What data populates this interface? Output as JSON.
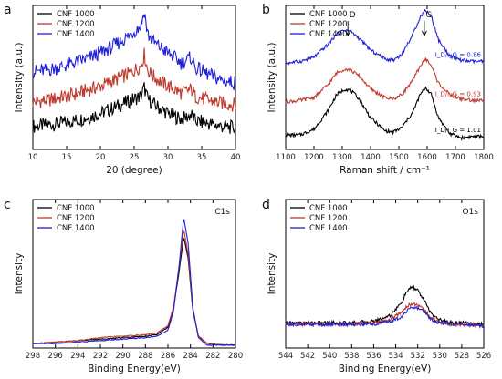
{
  "chart_data": [
    {
      "panel": "a",
      "type": "line",
      "xlabel": "2θ (degree)",
      "ylabel": "Intensity (a.u.)",
      "xlim": [
        10,
        40
      ],
      "xticks": [
        10,
        15,
        20,
        25,
        30,
        35,
        40
      ],
      "yticks": [],
      "legend_position": "top-left",
      "series": [
        {
          "name": "CNF 1000",
          "color": "#000000",
          "x": [
            10,
            12,
            14,
            16,
            18,
            20,
            22,
            24,
            25,
            26,
            26.5,
            27,
            28,
            30,
            32,
            33.5,
            34,
            36,
            38,
            40
          ],
          "y": [
            0.16,
            0.17,
            0.18,
            0.2,
            0.22,
            0.25,
            0.29,
            0.33,
            0.35,
            0.37,
            0.43,
            0.35,
            0.31,
            0.25,
            0.21,
            0.24,
            0.2,
            0.18,
            0.16,
            0.15
          ]
        },
        {
          "name": "CNF 1200",
          "color": "#c0392b",
          "x": [
            10,
            12,
            14,
            16,
            18,
            20,
            22,
            24,
            25,
            26,
            26.5,
            27,
            28,
            30,
            32,
            33.5,
            34,
            36,
            38,
            40
          ],
          "y": [
            0.33,
            0.34,
            0.36,
            0.38,
            0.41,
            0.44,
            0.48,
            0.52,
            0.55,
            0.58,
            0.66,
            0.55,
            0.5,
            0.44,
            0.39,
            0.42,
            0.37,
            0.34,
            0.32,
            0.31
          ]
        },
        {
          "name": "CNF 1400",
          "color": "#1f1fd6",
          "x": [
            10,
            12,
            14,
            16,
            18,
            20,
            22,
            24,
            25,
            26,
            26.5,
            27,
            28,
            30,
            32,
            33.5,
            34,
            36,
            38,
            40
          ],
          "y": [
            0.54,
            0.55,
            0.57,
            0.6,
            0.63,
            0.67,
            0.72,
            0.78,
            0.82,
            0.86,
            0.96,
            0.8,
            0.74,
            0.67,
            0.6,
            0.64,
            0.57,
            0.52,
            0.48,
            0.46
          ]
        }
      ]
    },
    {
      "panel": "b",
      "type": "line",
      "xlabel": "Raman shift / cm⁻¹",
      "ylabel": "Intensity (a.u.)",
      "xlim": [
        1100,
        1800
      ],
      "xticks": [
        1100,
        1200,
        1300,
        1400,
        1500,
        1600,
        1700,
        1800
      ],
      "yticks": [],
      "legend_position": "top-left",
      "annotations": [
        {
          "text": "D",
          "x": 1320
        },
        {
          "text": "G",
          "x": 1590
        }
      ],
      "ratio_labels": [
        {
          "text": "I_D/I_G = 0.86",
          "series": "CNF 1400"
        },
        {
          "text": "I_D/I_G = 0.93",
          "series": "CNF 1200"
        },
        {
          "text": "I_D/I_G = 1.01",
          "series": "CNF 1000"
        }
      ],
      "series": [
        {
          "name": "CNF 1000",
          "color": "#000000",
          "x": [
            1100,
            1150,
            1200,
            1250,
            1280,
            1310,
            1330,
            1360,
            1400,
            1450,
            1480,
            1510,
            1550,
            1575,
            1595,
            1615,
            1640,
            1680,
            1720,
            1760,
            1800
          ],
          "y": [
            0.1,
            0.1,
            0.14,
            0.27,
            0.38,
            0.42,
            0.41,
            0.35,
            0.22,
            0.13,
            0.12,
            0.15,
            0.26,
            0.38,
            0.43,
            0.38,
            0.22,
            0.11,
            0.08,
            0.09,
            0.09
          ]
        },
        {
          "name": "CNF 1200",
          "color": "#c0392b",
          "x": [
            1100,
            1150,
            1200,
            1250,
            1280,
            1310,
            1330,
            1360,
            1400,
            1450,
            1480,
            1510,
            1550,
            1575,
            1595,
            1615,
            1640,
            1680,
            1720,
            1760,
            1800
          ],
          "y": [
            0.33,
            0.34,
            0.36,
            0.45,
            0.53,
            0.56,
            0.55,
            0.51,
            0.42,
            0.36,
            0.35,
            0.38,
            0.48,
            0.58,
            0.63,
            0.58,
            0.46,
            0.38,
            0.35,
            0.34,
            0.34
          ]
        },
        {
          "name": "CNF 1400",
          "color": "#1f1fd6",
          "x": [
            1100,
            1150,
            1200,
            1250,
            1280,
            1310,
            1330,
            1360,
            1400,
            1450,
            1480,
            1510,
            1550,
            1575,
            1595,
            1615,
            1640,
            1680,
            1720,
            1760,
            1800
          ],
          "y": [
            0.6,
            0.61,
            0.64,
            0.73,
            0.8,
            0.83,
            0.82,
            0.77,
            0.69,
            0.63,
            0.62,
            0.66,
            0.8,
            0.92,
            0.97,
            0.92,
            0.76,
            0.65,
            0.62,
            0.61,
            0.61
          ]
        }
      ]
    },
    {
      "panel": "c",
      "type": "line",
      "xlabel": "Binding Energy(eV)",
      "ylabel": "Intensity",
      "xlim": [
        298,
        280
      ],
      "x_reversed": true,
      "xticks": [
        298,
        296,
        294,
        292,
        290,
        288,
        286,
        284,
        282,
        280
      ],
      "yticks": [],
      "legend_position": "top-left",
      "annotations": [
        {
          "text": "C1s",
          "position": "top-right"
        }
      ],
      "series": [
        {
          "name": "CNF 1000",
          "color": "#000000",
          "x": [
            298,
            296,
            294,
            292,
            290,
            288,
            287,
            286,
            285.5,
            285,
            284.6,
            284.2,
            283.8,
            283.3,
            282.5,
            281,
            280
          ],
          "y": [
            0.03,
            0.04,
            0.05,
            0.06,
            0.07,
            0.08,
            0.09,
            0.14,
            0.27,
            0.52,
            0.75,
            0.6,
            0.26,
            0.08,
            0.03,
            0.02,
            0.02
          ]
        },
        {
          "name": "CNF 1200",
          "color": "#c0392b",
          "x": [
            298,
            296,
            294,
            292,
            290,
            288,
            287,
            286,
            285.5,
            285,
            284.6,
            284.2,
            283.8,
            283.3,
            282.5,
            281,
            280
          ],
          "y": [
            0.03,
            0.04,
            0.05,
            0.07,
            0.08,
            0.09,
            0.1,
            0.15,
            0.28,
            0.55,
            0.8,
            0.63,
            0.27,
            0.08,
            0.03,
            0.02,
            0.02
          ]
        },
        {
          "name": "CNF 1400",
          "color": "#1f1fd6",
          "x": [
            298,
            296,
            294,
            292,
            290,
            288,
            287,
            286,
            285.5,
            285,
            284.6,
            284.2,
            283.8,
            283.3,
            282.5,
            281,
            280
          ],
          "y": [
            0.03,
            0.03,
            0.04,
            0.05,
            0.06,
            0.07,
            0.08,
            0.12,
            0.25,
            0.56,
            0.88,
            0.7,
            0.28,
            0.07,
            0.02,
            0.02,
            0.02
          ]
        }
      ]
    },
    {
      "panel": "d",
      "type": "line",
      "xlabel": "Binding Energy(eV)",
      "ylabel": "Intensity",
      "xlim": [
        544,
        526
      ],
      "x_reversed": true,
      "xticks": [
        544,
        542,
        540,
        538,
        536,
        534,
        532,
        530,
        528,
        526
      ],
      "yticks": [],
      "legend_position": "top-left",
      "annotations": [
        {
          "text": "O1s",
          "position": "top-right"
        }
      ],
      "series": [
        {
          "name": "CNF 1000",
          "color": "#000000",
          "x": [
            544,
            542,
            540,
            538,
            536,
            534.5,
            533.5,
            533,
            532.5,
            532,
            531.5,
            531,
            530.5,
            530,
            529,
            528,
            526
          ],
          "y": [
            0.17,
            0.17,
            0.17,
            0.17,
            0.18,
            0.22,
            0.3,
            0.38,
            0.41,
            0.39,
            0.33,
            0.26,
            0.21,
            0.19,
            0.17,
            0.17,
            0.16
          ]
        },
        {
          "name": "CNF 1200",
          "color": "#c0392b",
          "x": [
            544,
            542,
            540,
            538,
            536,
            534.5,
            533.5,
            533,
            532.5,
            532,
            531.5,
            531,
            530.5,
            530,
            529,
            528,
            526
          ],
          "y": [
            0.16,
            0.16,
            0.16,
            0.16,
            0.17,
            0.19,
            0.24,
            0.28,
            0.3,
            0.29,
            0.26,
            0.22,
            0.19,
            0.17,
            0.16,
            0.16,
            0.15
          ]
        },
        {
          "name": "CNF 1400",
          "color": "#1f1fd6",
          "x": [
            544,
            542,
            540,
            538,
            536,
            534.5,
            533.5,
            533,
            532.5,
            532,
            531.5,
            531,
            530.5,
            530,
            529,
            528,
            526
          ],
          "y": [
            0.16,
            0.16,
            0.16,
            0.16,
            0.16,
            0.18,
            0.21,
            0.25,
            0.27,
            0.27,
            0.25,
            0.21,
            0.18,
            0.17,
            0.16,
            0.16,
            0.15
          ]
        }
      ]
    }
  ]
}
